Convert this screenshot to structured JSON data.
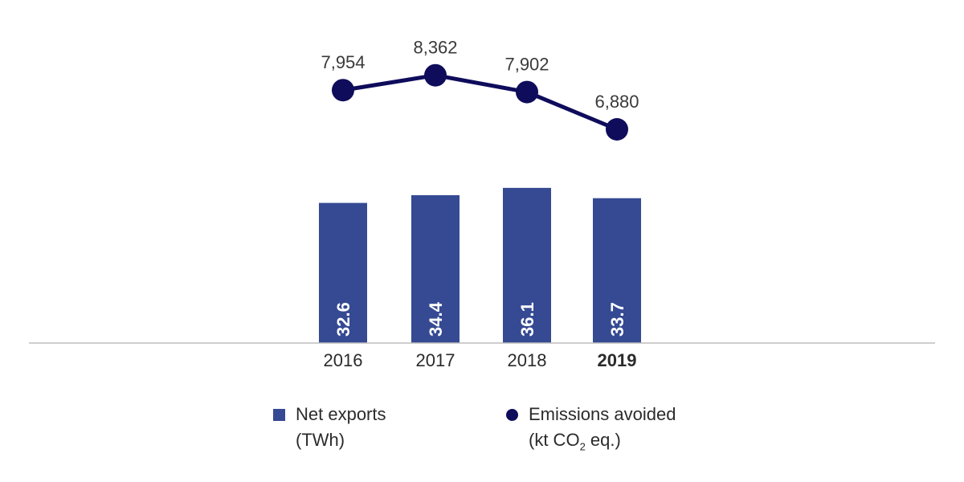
{
  "chart_data": {
    "type": "bar+line",
    "categories": [
      "2016",
      "2017",
      "2018",
      "2019"
    ],
    "highlighted_category": "2019",
    "series": [
      {
        "name": "Net exports (TWh)",
        "type": "bar",
        "values": [
          32.6,
          34.4,
          36.1,
          33.7
        ],
        "labels": [
          "32.6",
          "34.4",
          "36.1",
          "33.7"
        ],
        "color": "#354A93"
      },
      {
        "name": "Emissions avoided (kt CO₂ eq.)",
        "type": "line",
        "values": [
          7954,
          8362,
          7902,
          6880
        ],
        "labels": [
          "7,954",
          "8,362",
          "7,902",
          "6,880"
        ],
        "color": "#0F0C5C"
      }
    ],
    "axis_color": "#BDBDBD",
    "grid": false,
    "legend_position": "bottom"
  },
  "legend": {
    "bars": {
      "line1": "Net exports",
      "line2": "(TWh)"
    },
    "line": {
      "line1": "Emissions avoided",
      "line2_prefix": "(kt CO",
      "line2_sub": "2",
      "line2_suffix": " eq.)"
    }
  }
}
